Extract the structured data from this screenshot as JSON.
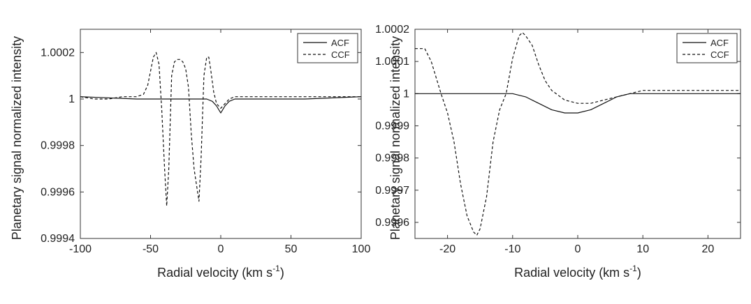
{
  "chart_data": [
    {
      "type": "line",
      "title": "",
      "xlabel": "Radial velocity (km s",
      "xlabel_sup": "-1",
      "xlabel_close": ")",
      "ylabel": "Planetary signal normalized intensity",
      "xlim": [
        -100,
        100
      ],
      "ylim": [
        0.9994,
        1.0003
      ],
      "xticks": [
        -100,
        -50,
        0,
        50,
        100
      ],
      "xtick_labels": [
        "-100",
        "-50",
        "0",
        "50",
        "100"
      ],
      "yticks": [
        0.9994,
        0.9996,
        0.9998,
        1.0,
        1.0002
      ],
      "ytick_labels": [
        "0.9994",
        "0.9996",
        "0.9998",
        "1",
        "1.0002"
      ],
      "grid": false,
      "legend_position": "top-right",
      "series": [
        {
          "name": "ACF",
          "style": "solid",
          "x": [
            -100,
            -60,
            -20,
            -10,
            -6,
            -3,
            -1,
            0,
            1,
            3,
            6,
            10,
            20,
            60,
            100
          ],
          "y": [
            1.00001,
            1.0,
            1.0,
            1.0,
            0.99999,
            0.99997,
            0.99995,
            0.99994,
            0.99995,
            0.99997,
            0.99999,
            1.0,
            1.0,
            1.0,
            1.00001
          ]
        },
        {
          "name": "CCF",
          "style": "dashed",
          "x": [
            -100,
            -90,
            -80,
            -70,
            -60,
            -55,
            -52,
            -50,
            -48,
            -46,
            -44,
            -42,
            -40,
            -38.5,
            -37,
            -35,
            -33,
            -31,
            -29,
            -27,
            -25,
            -23,
            -21,
            -19,
            -17,
            -15.5,
            -14,
            -12,
            -10,
            -8.5,
            -7,
            -5,
            -3,
            0,
            3,
            6,
            10,
            15,
            20,
            30,
            40,
            50,
            60,
            70,
            80,
            90,
            100
          ],
          "y": [
            1.00001,
            1.0,
            1.0,
            1.00001,
            1.00001,
            1.00002,
            1.00006,
            1.00012,
            1.00018,
            1.0002,
            1.00015,
            0.99995,
            0.9997,
            0.99954,
            0.9997,
            1.0001,
            1.00016,
            1.00017,
            1.00017,
            1.00016,
            1.00013,
            1.00005,
            0.99985,
            0.9997,
            0.99962,
            0.99956,
            0.99975,
            1.0001,
            1.00018,
            1.00018,
            1.00012,
            1.00003,
            0.99998,
            0.99996,
            0.99998,
            1.0,
            1.00001,
            1.00001,
            1.00001,
            1.00001,
            1.00001,
            1.00001,
            1.00001,
            1.00001,
            1.00001,
            1.00001,
            1.00001
          ]
        }
      ]
    },
    {
      "type": "line",
      "title": "",
      "xlabel": "Radial velocity (km s",
      "xlabel_sup": "-1",
      "xlabel_close": ")",
      "ylabel": "Planetary signal normalized intensity",
      "xlim": [
        -25,
        25
      ],
      "ylim": [
        0.99955,
        1.0002
      ],
      "xticks": [
        -20,
        -10,
        0,
        10,
        20
      ],
      "xtick_labels": [
        "-20",
        "-10",
        "0",
        "10",
        "20"
      ],
      "yticks": [
        0.9996,
        0.9997,
        0.9998,
        0.9999,
        1.0,
        1.0001,
        1.0002
      ],
      "ytick_labels": [
        "0.9996",
        "0.9997",
        "0.9998",
        "0.9999",
        "1",
        "1.0001",
        "1.0002"
      ],
      "grid": false,
      "legend_position": "top-right",
      "series": [
        {
          "name": "ACF",
          "style": "solid",
          "x": [
            -25,
            -20,
            -15,
            -10,
            -8,
            -6,
            -4,
            -2,
            0,
            2,
            4,
            6,
            8,
            10,
            15,
            20,
            25
          ],
          "y": [
            1.0,
            1.0,
            1.0,
            1.0,
            0.99999,
            0.99997,
            0.99995,
            0.99994,
            0.99994,
            0.99995,
            0.99997,
            0.99999,
            1.0,
            1.0,
            1.0,
            1.0,
            1.0
          ]
        },
        {
          "name": "CCF",
          "style": "dashed",
          "x": [
            -25,
            -23.5,
            -22.5,
            -21,
            -20,
            -19,
            -18,
            -17,
            -16,
            -15.5,
            -15,
            -14,
            -13,
            -12,
            -11,
            -10,
            -9,
            -8.5,
            -8,
            -7,
            -6,
            -5,
            -4,
            -2,
            0,
            2,
            4,
            6,
            8,
            10,
            12,
            15,
            20,
            25
          ],
          "y": [
            1.00014,
            1.00014,
            1.0001,
            1.0,
            0.99994,
            0.99985,
            0.99972,
            0.99962,
            0.99957,
            0.99956,
            0.99958,
            0.99968,
            0.99985,
            0.99995,
            1.0,
            1.00011,
            1.00018,
            1.00019,
            1.00018,
            1.00015,
            1.00009,
            1.00004,
            1.00001,
            0.99998,
            0.99997,
            0.99997,
            0.99998,
            0.99999,
            1.0,
            1.00001,
            1.00001,
            1.00001,
            1.00001,
            1.00001
          ]
        }
      ]
    }
  ]
}
